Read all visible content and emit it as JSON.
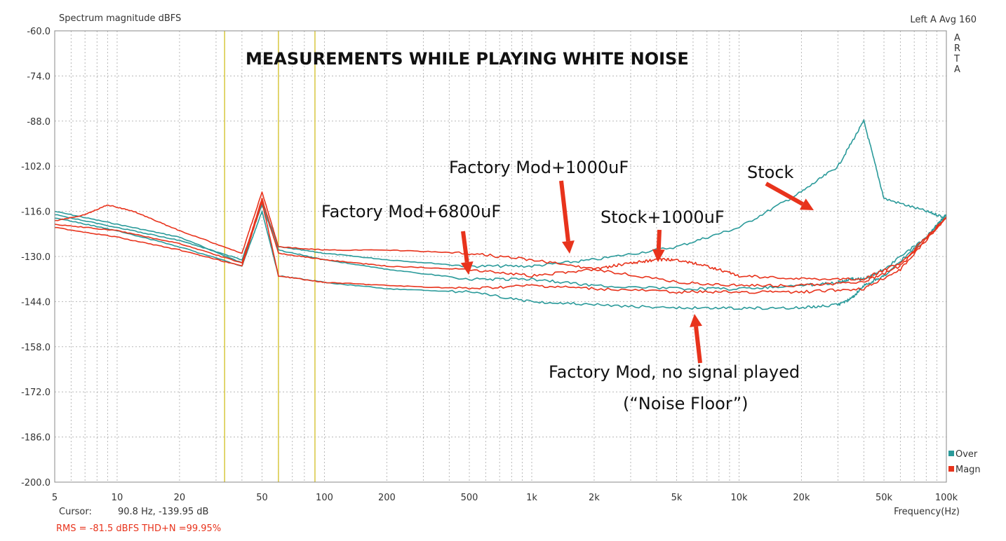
{
  "chart_data": {
    "type": "line",
    "title": "MEASUREMENTS WHILE PLAYING WHITE NOISE",
    "ylabel": "Spectrum magnitude dBFS",
    "xlabel": "Frequency(Hz)",
    "x_scale": "log",
    "xlim": [
      5,
      100000
    ],
    "ylim": [
      -200,
      -60
    ],
    "x_ticks": [
      5,
      10,
      20,
      50,
      100,
      200,
      500,
      1000,
      2000,
      5000,
      10000,
      20000,
      50000,
      100000
    ],
    "x_tick_labels": [
      "5",
      "10",
      "20",
      "50",
      "100",
      "200",
      "500",
      "1k",
      "2k",
      "5k",
      "10k",
      "20k",
      "50k",
      "100k"
    ],
    "y_ticks": [
      -60,
      -74,
      -88,
      -102,
      -116,
      -130,
      -144,
      -158,
      -172,
      -186,
      -200
    ],
    "y_tick_labels": [
      "-60.0",
      "-74.0",
      "-88.0",
      "-102.0",
      "-116.0",
      "-130.0",
      "-144.0",
      "-158.0",
      "-172.0",
      "-186.0",
      "-200.0"
    ],
    "grid": true,
    "vertical_markers_hz": [
      33,
      60,
      90
    ],
    "legend": [
      {
        "label": "Over",
        "color": "#2a9a9a"
      },
      {
        "label": "Magn",
        "color": "#e8331c"
      }
    ],
    "series": [
      {
        "color": "#2a9a9a",
        "x": [
          5,
          10,
          20,
          40,
          50,
          60,
          100,
          200,
          500,
          1000,
          2000,
          5000,
          10000,
          20000,
          30000,
          40000,
          50000,
          80000,
          100000
        ],
        "y": [
          -116,
          -120,
          -124,
          -132,
          -113,
          -127,
          -129,
          -131,
          -133,
          -133,
          -131,
          -127,
          -121,
          -110,
          -102,
          -88,
          -112,
          -116,
          -118
        ]
      },
      {
        "color": "#2a9a9a",
        "x": [
          5,
          10,
          20,
          40,
          50,
          60,
          100,
          200,
          500,
          1000,
          2000,
          5000,
          10000,
          20000,
          30000,
          35000,
          40000,
          50000,
          80000,
          100000
        ],
        "y": [
          -117,
          -121,
          -125,
          -131,
          -114,
          -128,
          -131,
          -134,
          -137,
          -137,
          -139,
          -140,
          -140,
          -139,
          -138,
          -137,
          -137,
          -134,
          -124,
          -117
        ]
      },
      {
        "color": "#2a9a9a",
        "x": [
          5,
          10,
          20,
          40,
          50,
          60,
          100,
          200,
          500,
          1000,
          2000,
          5000,
          10000,
          20000,
          30000,
          35000,
          40000,
          50000,
          80000,
          100000
        ],
        "y": [
          -118,
          -122,
          -127,
          -133,
          -116,
          -136,
          -138,
          -140,
          -141,
          -144,
          -145,
          -146,
          -146,
          -146,
          -145,
          -143,
          -139,
          -136,
          -124,
          -117
        ]
      },
      {
        "color": "#e8331c",
        "x": [
          5,
          7,
          9,
          12,
          20,
          40,
          50,
          60,
          100,
          200,
          500,
          1000,
          2000,
          5000,
          10000,
          20000,
          40000,
          60000,
          100000
        ],
        "y": [
          -119,
          -117,
          -114,
          -116,
          -122,
          -129,
          -110,
          -127,
          -128,
          -128,
          -129,
          -131,
          -134,
          -138,
          -139,
          -139,
          -138,
          -133,
          -118
        ]
      },
      {
        "color": "#e8331c",
        "x": [
          5,
          10,
          20,
          40,
          50,
          60,
          100,
          200,
          500,
          1000,
          2000,
          3000,
          4000,
          5000,
          7000,
          10000,
          20000,
          40000,
          60000,
          100000
        ],
        "y": [
          -120,
          -122,
          -126,
          -132,
          -112,
          -129,
          -131,
          -133,
          -134,
          -136,
          -134,
          -132,
          -131,
          -131,
          -133,
          -136,
          -137,
          -137,
          -132,
          -118
        ]
      },
      {
        "color": "#e8331c",
        "x": [
          5,
          10,
          20,
          40,
          50,
          60,
          100,
          200,
          500,
          1000,
          2000,
          5000,
          10000,
          20000,
          40000,
          60000,
          100000
        ],
        "y": [
          -121,
          -124,
          -128,
          -133,
          -113,
          -136,
          -138,
          -139,
          -140,
          -139,
          -140,
          -141,
          -141,
          -141,
          -140,
          -134,
          -118
        ]
      }
    ],
    "annotations": [
      {
        "text": "Factory Mod+1000uF",
        "points_to": {
          "x": 1400,
          "y": -131
        }
      },
      {
        "text": "Stock",
        "points_to": {
          "x": 24000,
          "y": -115
        }
      },
      {
        "text": "Factory Mod+6800uF",
        "points_to": {
          "x": 480,
          "y": -136
        }
      },
      {
        "text": "Stock+1000uF",
        "points_to": {
          "x": 4200,
          "y": -131
        }
      },
      {
        "text": "Factory Mod, no signal played",
        "points_to": {
          "x": 6500,
          "y": -146
        }
      },
      {
        "text": "(“Noise Floor”)"
      }
    ]
  },
  "header": {
    "top_right": "Left A Avg 160",
    "brand_letters": [
      "A",
      "R",
      "T",
      "A"
    ]
  },
  "footer": {
    "cursor_label": "Cursor:",
    "cursor_value": "90.8 Hz, -139.95 dB",
    "rms_line": "RMS =  -81.5 dBFS   THD+N =99.95%"
  },
  "colors": {
    "teal": "#2a9a9a",
    "red": "#e8331c",
    "marker_yellow": "#d8c840",
    "grid": "#b8b8b8"
  }
}
